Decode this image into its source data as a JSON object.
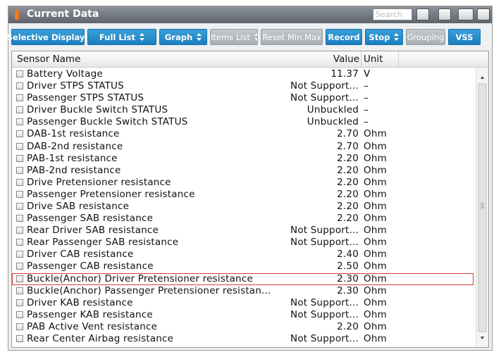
{
  "header": {
    "title": "Current Data",
    "search_placeholder": "Search"
  },
  "toolbar": {
    "buttons": [
      "Selective Display",
      "Full List",
      "Graph",
      "Items List",
      "Reset Min.Max",
      "Record",
      "Stop",
      "Grouping",
      "VSS"
    ]
  },
  "table": {
    "columns": [
      "Sensor Name",
      "Value",
      "Unit"
    ],
    "rows": [
      [
        "Battery Voltage",
        "11.37",
        "V"
      ],
      [
        "Driver STPS STATUS",
        "Not Support...",
        "–"
      ],
      [
        "Passenger STPS STATUS",
        "Not Support...",
        "–"
      ],
      [
        "Driver Buckle Switch STATUS",
        "Unbuckled",
        "–"
      ],
      [
        "Passenger Buckle Switch STATUS",
        "Unbuckled",
        "–"
      ],
      [
        "DAB-1st resistance",
        "2.70",
        "Ohm"
      ],
      [
        "DAB-2nd resistance",
        "2.70",
        "Ohm"
      ],
      [
        "PAB-1st resistance",
        "2.20",
        "Ohm"
      ],
      [
        "PAB-2nd resistance",
        "2.20",
        "Ohm"
      ],
      [
        "Drive Pretensioner resistance",
        "2.20",
        "Ohm"
      ],
      [
        "Passenger Pretensioner resistance",
        "2.20",
        "Ohm"
      ],
      [
        "Drive SAB resistance",
        "2.20",
        "Ohm"
      ],
      [
        "Passenger SAB resistance",
        "2.20",
        "Ohm"
      ],
      [
        "Rear Driver SAB resistance",
        "Not Support...",
        "Ohm"
      ],
      [
        "Rear Passenger SAB resistance",
        "Not Support...",
        "Ohm"
      ],
      [
        "Driver CAB resistance",
        "2.40",
        "Ohm"
      ],
      [
        "Passenger CAB resistance",
        "2.50",
        "Ohm"
      ],
      [
        "Buckle(Anchor) Driver Pretensioner resistance",
        "2.30",
        "Ohm"
      ],
      [
        "Buckle(Anchor) Passenger Pretensioner resistan...",
        "2.30",
        "Ohm"
      ],
      [
        "Driver KAB resistance",
        "Not Support...",
        "Ohm"
      ],
      [
        "Passenger KAB resistance",
        "Not Support...",
        "Ohm"
      ],
      [
        "PAB Active Vent resistance",
        "2.20",
        "Ohm"
      ],
      [
        "Rear Center Airbag resistance",
        "Not Support...",
        "Ohm"
      ]
    ],
    "highlighted_row": 17
  }
}
